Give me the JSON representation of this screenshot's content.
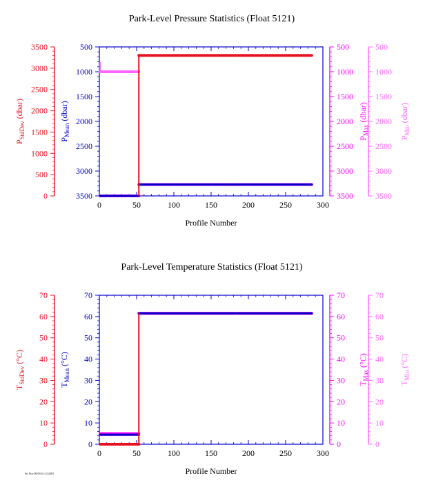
{
  "footer_stamp": "Fri Nov 09 09:31:13 2018",
  "colors": {
    "stddev": "#e8111f",
    "mean": "#0000c8",
    "max": "#ff00ff",
    "min": "#ff66ff",
    "frame": "#0000c8"
  },
  "chart_data": [
    {
      "type": "scatter",
      "title": "Park-Level Pressure Statistics (Float 5121)",
      "xlabel": "Profile Number",
      "xlim": [
        0,
        300
      ],
      "x_ticks": [
        "0",
        "50",
        "100",
        "150",
        "200",
        "250",
        "300"
      ],
      "axes": {
        "stddev": {
          "label_main": "P",
          "label_sub": "StdDev",
          "label_unit": " (dbar)",
          "lim": [
            0,
            3500
          ],
          "inverted": false,
          "ticks": [
            "0",
            "500",
            "1000",
            "1500",
            "2000",
            "2500",
            "3000",
            "3500"
          ]
        },
        "mean": {
          "label_main": "P",
          "label_sub": "Mean",
          "label_unit": " (dbar)",
          "lim": [
            500,
            3500
          ],
          "inverted": true,
          "ticks": [
            "500",
            "1000",
            "1500",
            "2000",
            "2500",
            "3000",
            "3500"
          ]
        },
        "max": {
          "label_main": "P",
          "label_sub": "Max",
          "label_unit": " (dbar)",
          "lim": [
            500,
            3500
          ],
          "inverted": true,
          "ticks": [
            "500",
            "1000",
            "1500",
            "2000",
            "2500",
            "3000",
            "3500"
          ]
        },
        "min": {
          "label_main": "P",
          "label_sub": "Min",
          "label_unit": " (dbar)",
          "lim": [
            500,
            3500
          ],
          "inverted": true,
          "ticks": [
            "500",
            "1000",
            "1500",
            "2000",
            "2500",
            "3000",
            "3500"
          ]
        }
      },
      "series": [
        {
          "axis": "stddev",
          "segments": [
            {
              "x": [
                1,
                53
              ],
              "y": 0
            },
            {
              "x": [
                53,
                183
              ],
              "y": 3300
            },
            {
              "x": [
                185,
                285
              ],
              "y": 3300
            }
          ]
        },
        {
          "axis": "mean",
          "segments": [
            {
              "x": [
                1,
                53
              ],
              "y": 3500
            },
            {
              "x": [
                53,
                183
              ],
              "y": 3270
            },
            {
              "x": [
                185,
                285
              ],
              "y": 3270
            }
          ]
        },
        {
          "axis": "max",
          "segments": [
            {
              "x": [
                1,
                53
              ],
              "y": 3500
            },
            {
              "x": [
                53,
                183
              ],
              "y": 3270
            },
            {
              "x": [
                185,
                285
              ],
              "y": 3270
            }
          ]
        },
        {
          "axis": "min",
          "segments": [
            {
              "x": [
                1,
                53
              ],
              "y": 1000
            },
            {
              "x": [
                53,
                183
              ],
              "y": 3270
            },
            {
              "x": [
                185,
                285
              ],
              "y": 3270
            }
          ]
        }
      ],
      "annotations": [
        {
          "type": "spike",
          "axis": "min",
          "x": 1,
          "y1": 800,
          "y2": 1000
        },
        {
          "type": "spike",
          "axis": "stddev",
          "x": 53,
          "y1": 0,
          "y2": 3300
        }
      ]
    },
    {
      "type": "scatter",
      "title": "Park-Level Temperature Statistics (Float 5121)",
      "xlabel": "Profile Number",
      "xlim": [
        0,
        300
      ],
      "x_ticks": [
        "0",
        "50",
        "100",
        "150",
        "200",
        "250",
        "300"
      ],
      "axes": {
        "stddev": {
          "label_main": "T",
          "label_sub": "StdDev",
          "label_unit": " (°C)",
          "lim": [
            0,
            70
          ],
          "inverted": false,
          "ticks": [
            "0",
            "10",
            "20",
            "30",
            "40",
            "50",
            "60",
            "70"
          ]
        },
        "mean": {
          "label_main": "T",
          "label_sub": "Mean",
          "label_unit": " (°C)",
          "lim": [
            0,
            70
          ],
          "inverted": false,
          "ticks": [
            "0",
            "10",
            "20",
            "30",
            "40",
            "50",
            "60",
            "70"
          ]
        },
        "max": {
          "label_main": "T",
          "label_sub": "Max",
          "label_unit": " (°C)",
          "lim": [
            0,
            70
          ],
          "inverted": false,
          "ticks": [
            "0",
            "10",
            "20",
            "30",
            "40",
            "50",
            "60",
            "70"
          ]
        },
        "min": {
          "label_main": "T",
          "label_sub": "Min",
          "label_unit": " (°C)",
          "lim": [
            0,
            70
          ],
          "inverted": false,
          "ticks": [
            "0",
            "10",
            "20",
            "30",
            "40",
            "50",
            "60",
            "70"
          ]
        }
      },
      "series": [
        {
          "axis": "stddev",
          "segments": [
            {
              "x": [
                1,
                53
              ],
              "y": 0
            },
            {
              "x": [
                53,
                183
              ],
              "y": 61.5
            },
            {
              "x": [
                185,
                285
              ],
              "y": 61.5
            }
          ]
        },
        {
          "axis": "mean",
          "segments": [
            {
              "x": [
                1,
                53
              ],
              "y": 4.5
            },
            {
              "x": [
                53,
                183
              ],
              "y": 61.5
            },
            {
              "x": [
                185,
                285
              ],
              "y": 61.5
            }
          ]
        },
        {
          "axis": "max",
          "segments": [
            {
              "x": [
                1,
                53
              ],
              "y": 5
            },
            {
              "x": [
                53,
                183
              ],
              "y": 61.5
            },
            {
              "x": [
                185,
                285
              ],
              "y": 61.5
            }
          ]
        },
        {
          "axis": "min",
          "segments": [
            {
              "x": [
                1,
                53
              ],
              "y": 4.5
            },
            {
              "x": [
                53,
                183
              ],
              "y": 61.5
            },
            {
              "x": [
                185,
                285
              ],
              "y": 61.5
            }
          ]
        }
      ],
      "annotations": [
        {
          "type": "spike",
          "axis": "stddev",
          "x": 53,
          "y1": 0,
          "y2": 61.5
        }
      ]
    }
  ]
}
